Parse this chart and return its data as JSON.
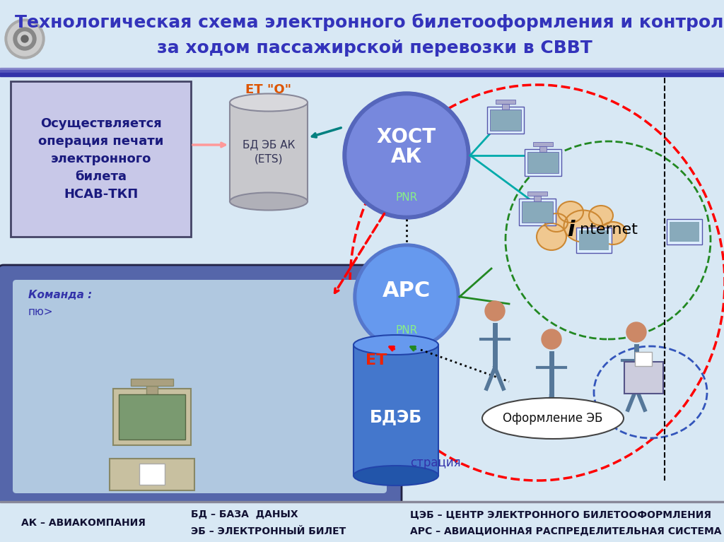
{
  "title_line1": "Технологическая схема электронного билетооформления и контроля",
  "title_line2": "за ходом пассажирской перевозки в СВВТ",
  "bg_color": "#d8e8f4",
  "title_color": "#3333bb",
  "box1_text": "Осуществляется\nоперация печати\nэлектронного\nбилета\nНСАВ-ТКП",
  "box1_bg": "#c8c8e8",
  "box1_border": "#444466",
  "cylinder1_label_top": "ЕТ \"О\"",
  "cylinder1_label": "БД ЭБ АК\n(ETS)",
  "host_label": "ХОСТ\nАК",
  "host_sub": "PNR",
  "ars_label": "АРС",
  "ars_sub": "PNR",
  "et_label": "ЕТ",
  "bde_label": "БДЭБ",
  "internet_label": "nternet",
  "internet_i": "i",
  "oformlenie_label": "Оформление ЭБ",
  "reg_text": "страция",
  "footer_left": "АК – АВИАКОМПАНИЯ",
  "footer_mid1": "БД – БАЗА  ДАНЫХ",
  "footer_mid2": "ЭБ – ЭЛЕКТРОННЫЙ БИЛЕТ",
  "footer_right1": "ЦЭБ – ЦЕНТР ЭЛЕКТРОННОГО БИЛЕТООФОРМЛЕНИЯ",
  "footer_right2": "АРС – АВИАЦИОННАЯ РАСПРЕДЕЛИТЕЛЬНАЯ СИСТЕМА",
  "screen_bg": "#5566aa",
  "screen_inner": "#b0c8e0",
  "screen_text1": "Команда :",
  "screen_text2": "пю>"
}
